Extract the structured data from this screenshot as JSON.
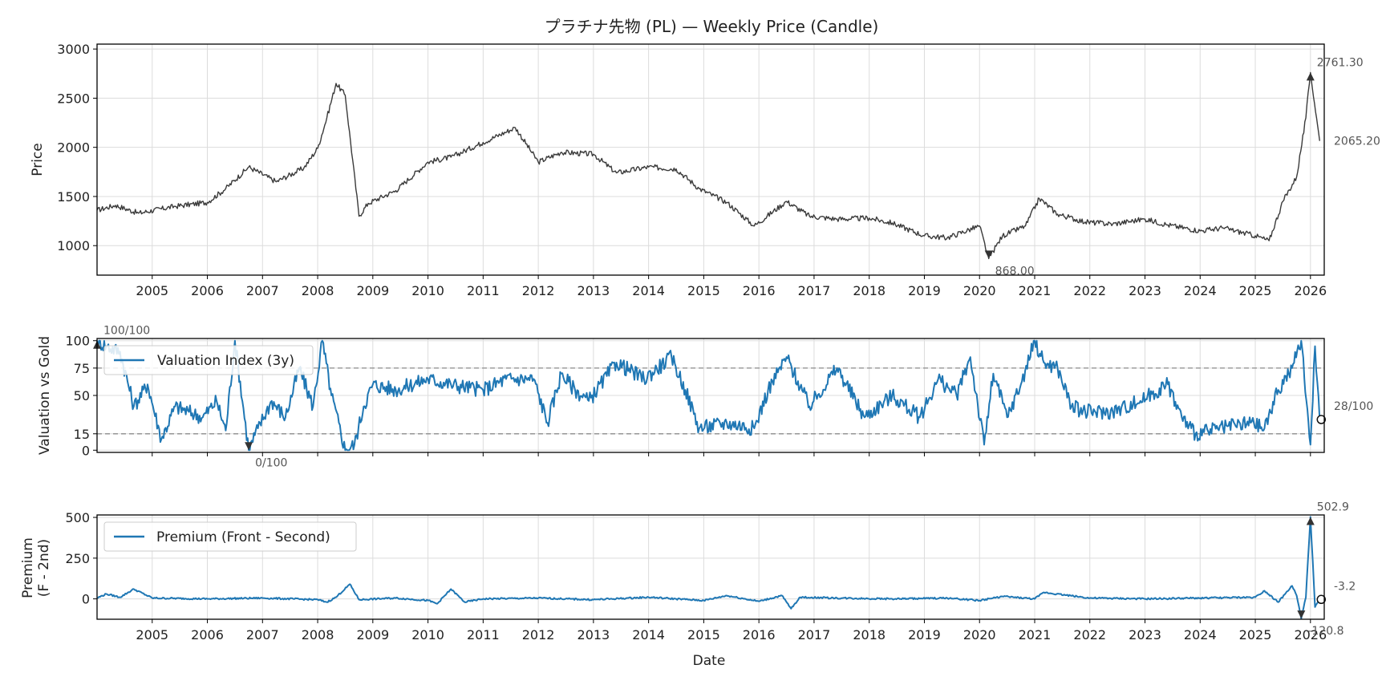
{
  "colors": {
    "price": "#3a3a3a",
    "series": "#1f77b4",
    "threshold": "#8c8c8c",
    "grid": "#dcdcdc",
    "marker": "#333333"
  },
  "chart_data": [
    {
      "type": "line",
      "title": "プラチナ先物 (PL) — Weekly Price (Candle)",
      "xlabel": "",
      "ylabel": "Price",
      "xlim": [
        "2004-01-01",
        "2026-04-01"
      ],
      "ylim": [
        700,
        3050
      ],
      "yticks": [
        1000,
        1500,
        2000,
        2500,
        3000
      ],
      "xtick_labels": [
        "2005",
        "2006",
        "2007",
        "2008",
        "2009",
        "2010",
        "2011",
        "2012",
        "2013",
        "2014",
        "2015",
        "2016",
        "2017",
        "2018",
        "2019",
        "2020",
        "2021",
        "2022",
        "2023",
        "2024",
        "2025",
        "2026"
      ],
      "grid": true,
      "series": [
        {
          "x": [
            "2004-01",
            "2004-05",
            "2004-10",
            "2005-06",
            "2006-01",
            "2006-05",
            "2006-10",
            "2007-04",
            "2007-10",
            "2008-01",
            "2008-03",
            "2008-05",
            "2008-07",
            "2008-10",
            "2008-12",
            "2009-06",
            "2010-01",
            "2010-06",
            "2011-01",
            "2011-08",
            "2012-01",
            "2012-06",
            "2013-01",
            "2013-06",
            "2014-01",
            "2014-07",
            "2014-12",
            "2015-06",
            "2015-12",
            "2016-07",
            "2016-12",
            "2017-06",
            "2018-01",
            "2018-06",
            "2019-01",
            "2019-06",
            "2020-01",
            "2020-03",
            "2020-06",
            "2020-11",
            "2021-02",
            "2021-06",
            "2021-12",
            "2022-06",
            "2023-01",
            "2023-06",
            "2024-01",
            "2024-06",
            "2025-01",
            "2025-04",
            "2025-07",
            "2025-10",
            "2025-12",
            "2026-01",
            "2026-03"
          ],
          "y": [
            1360,
            1410,
            1330,
            1400,
            1440,
            1580,
            1800,
            1650,
            1790,
            1990,
            2300,
            2650,
            2530,
            1300,
            1430,
            1560,
            1850,
            1900,
            2050,
            2200,
            1850,
            1950,
            1930,
            1740,
            1800,
            1780,
            1580,
            1440,
            1200,
            1450,
            1300,
            1270,
            1280,
            1230,
            1100,
            1080,
            1200,
            868,
            1100,
            1200,
            1480,
            1320,
            1240,
            1220,
            1270,
            1210,
            1150,
            1180,
            1100,
            1050,
            1450,
            1700,
            2300,
            2761.3,
            2065.2
          ]
        }
      ],
      "annotations": [
        {
          "text": "2761.30",
          "x": "2026-01",
          "y": 2761.3,
          "marker": "up"
        },
        {
          "text": "868.00",
          "x": "2020-03",
          "y": 868,
          "marker": "down"
        },
        {
          "text": "2065.20",
          "x": "2026-03",
          "y": 2065.2,
          "marker": "none"
        }
      ]
    },
    {
      "type": "line",
      "title": "",
      "xlabel": "",
      "ylabel": "Valuation vs Gold",
      "xlim": [
        "2004-01-01",
        "2026-04-01"
      ],
      "ylim": [
        -2,
        102
      ],
      "yticks": [
        0,
        15,
        50,
        75,
        100
      ],
      "hlines": [
        15,
        75
      ],
      "grid": true,
      "legend": "upper-left",
      "series": [
        {
          "name": "Valuation Index (3y)",
          "x": [
            "2004-01",
            "2004-03",
            "2004-06",
            "2004-09",
            "2004-12",
            "2005-03",
            "2005-06",
            "2005-09",
            "2005-12",
            "2006-03",
            "2006-05",
            "2006-07",
            "2006-10",
            "2006-12",
            "2007-03",
            "2007-06",
            "2007-09",
            "2007-12",
            "2008-02",
            "2008-04",
            "2008-07",
            "2008-09",
            "2008-11",
            "2009-01",
            "2009-06",
            "2010-01",
            "2010-06",
            "2011-01",
            "2011-06",
            "2011-12",
            "2012-03",
            "2012-06",
            "2012-09",
            "2012-12",
            "2013-06",
            "2013-12",
            "2014-06",
            "2014-09",
            "2014-12",
            "2015-06",
            "2015-12",
            "2016-03",
            "2016-07",
            "2016-12",
            "2017-06",
            "2017-12",
            "2018-06",
            "2018-12",
            "2019-04",
            "2019-08",
            "2019-11",
            "2020-02",
            "2020-04",
            "2020-07",
            "2020-10",
            "2021-01",
            "2021-03",
            "2021-06",
            "2021-09",
            "2021-12",
            "2022-06",
            "2022-12",
            "2023-06",
            "2023-09",
            "2023-12",
            "2024-06",
            "2024-12",
            "2025-03",
            "2025-06",
            "2025-09",
            "2025-11",
            "2026-01",
            "2026-02",
            "2026-03"
          ],
          "y": [
            100,
            95,
            90,
            40,
            60,
            10,
            40,
            35,
            30,
            45,
            18,
            100,
            0,
            20,
            45,
            30,
            75,
            40,
            100,
            50,
            0,
            5,
            40,
            60,
            55,
            65,
            60,
            55,
            65,
            65,
            25,
            70,
            55,
            45,
            80,
            65,
            85,
            55,
            20,
            25,
            20,
            55,
            85,
            40,
            75,
            30,
            50,
            30,
            65,
            50,
            85,
            5,
            70,
            30,
            60,
            100,
            80,
            75,
            40,
            35,
            35,
            45,
            60,
            30,
            15,
            20,
            25,
            20,
            55,
            75,
            100,
            5,
            95,
            28
          ]
        }
      ],
      "annotations": [
        {
          "text": "100/100",
          "x": "2004-01",
          "y": 100,
          "marker": "up"
        },
        {
          "text": "0/100",
          "x": "2006-10",
          "y": 0,
          "marker": "down"
        },
        {
          "text": "28/100",
          "x": "2026-03",
          "y": 28,
          "marker": "circle"
        }
      ]
    },
    {
      "type": "line",
      "title": "",
      "xlabel": "Date",
      "ylabel": "Premium\n(F - 2nd)",
      "xlim": [
        "2004-01-01",
        "2026-04-01"
      ],
      "ylim": [
        -125,
        515
      ],
      "yticks": [
        0,
        250,
        500
      ],
      "xtick_labels": [
        "2005",
        "2006",
        "2007",
        "2008",
        "2009",
        "2010",
        "2011",
        "2012",
        "2013",
        "2014",
        "2015",
        "2016",
        "2017",
        "2018",
        "2019",
        "2020",
        "2021",
        "2022",
        "2023",
        "2024",
        "2025",
        "2026"
      ],
      "grid": true,
      "legend": "upper-left",
      "series": [
        {
          "name": "Premium (Front - Second)",
          "x": [
            "2004-01",
            "2004-03",
            "2004-06",
            "2004-09",
            "2005-01",
            "2006-01",
            "2007-01",
            "2008-01",
            "2008-03",
            "2008-05",
            "2008-08",
            "2008-10",
            "2009-06",
            "2010-01",
            "2010-03",
            "2010-06",
            "2010-09",
            "2011-01",
            "2012-01",
            "2013-01",
            "2014-01",
            "2015-01",
            "2015-06",
            "2016-01",
            "2016-06",
            "2016-08",
            "2016-10",
            "2017-06",
            "2018-06",
            "2019-06",
            "2020-01",
            "2020-06",
            "2021-01",
            "2021-03",
            "2022-01",
            "2023-01",
            "2024-01",
            "2025-01",
            "2025-03",
            "2025-06",
            "2025-09",
            "2025-10",
            "2025-11",
            "2025-12",
            "2026-01",
            "2026-02",
            "2026-03"
          ],
          "y": [
            5,
            30,
            10,
            60,
            5,
            0,
            5,
            -5,
            -20,
            10,
            90,
            -5,
            5,
            -10,
            -30,
            60,
            -20,
            0,
            5,
            -5,
            10,
            -10,
            20,
            -15,
            20,
            -60,
            10,
            5,
            0,
            5,
            -10,
            15,
            0,
            40,
            5,
            0,
            5,
            10,
            50,
            -20,
            80,
            20,
            -120.8,
            10,
            502.9,
            -50,
            -3.2
          ]
        }
      ],
      "annotations": [
        {
          "text": "502.9",
          "x": "2026-01",
          "y": 502.9,
          "marker": "up"
        },
        {
          "text": "-120.8",
          "x": "2025-11",
          "y": -120.8,
          "marker": "down"
        },
        {
          "text": "-3.2",
          "x": "2026-03",
          "y": -3.2,
          "marker": "circle"
        }
      ]
    }
  ]
}
